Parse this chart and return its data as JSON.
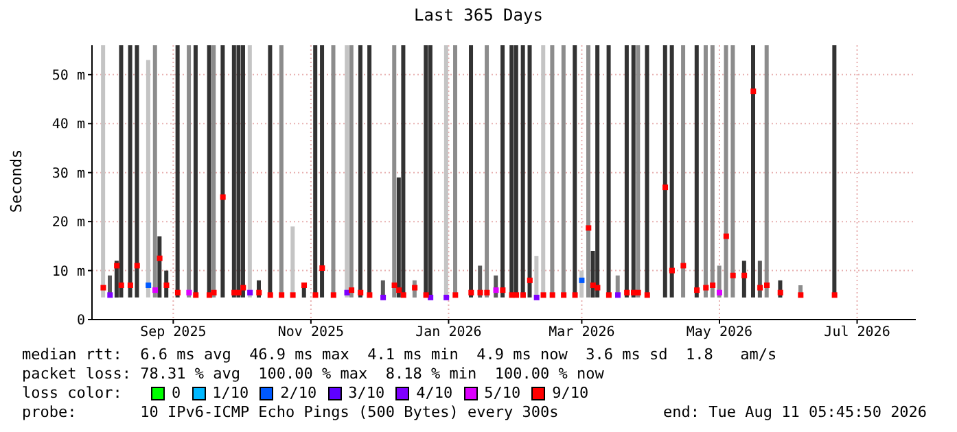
{
  "chart_data": {
    "type": "bar",
    "title": "Last 365 Days",
    "ylabel": "Seconds",
    "x": [
      "2025-08-16",
      "2025-08-19",
      "2025-08-22",
      "2025-08-24",
      "2025-08-28",
      "2025-08-31",
      "2025-09-05",
      "2025-09-08",
      "2025-09-10",
      "2025-09-13",
      "2025-09-18",
      "2025-09-23",
      "2025-09-26",
      "2025-10-02",
      "2025-10-04",
      "2025-10-08",
      "2025-10-13",
      "2025-10-15",
      "2025-10-17",
      "2025-10-20",
      "2025-10-24",
      "2025-10-29",
      "2025-11-03",
      "2025-11-08",
      "2025-11-13",
      "2025-11-18",
      "2025-11-21",
      "2025-11-26",
      "2025-12-02",
      "2025-12-04",
      "2025-12-08",
      "2025-12-12",
      "2025-12-18",
      "2025-12-23",
      "2025-12-25",
      "2025-12-27",
      "2026-01-01",
      "2026-01-06",
      "2026-01-08",
      "2026-01-15",
      "2026-01-19",
      "2026-01-26",
      "2026-01-30",
      "2026-02-02",
      "2026-02-06",
      "2026-02-09",
      "2026-02-13",
      "2026-02-15",
      "2026-02-18",
      "2026-02-21",
      "2026-02-24",
      "2026-02-27",
      "2026-03-03",
      "2026-03-08",
      "2026-03-13",
      "2026-03-16",
      "2026-03-19",
      "2026-03-21",
      "2026-03-23",
      "2026-03-28",
      "2026-04-01",
      "2026-04-05",
      "2026-04-08",
      "2026-04-10",
      "2026-04-14",
      "2026-04-22",
      "2026-04-25",
      "2026-04-30",
      "2026-05-06",
      "2026-05-10",
      "2026-05-13",
      "2026-05-16",
      "2026-05-19",
      "2026-05-22",
      "2026-05-27",
      "2026-05-31",
      "2026-06-03",
      "2026-06-06",
      "2026-06-12",
      "2026-06-21",
      "2026-07-06"
    ],
    "series": [
      {
        "base": [
          4.5,
          4.5,
          4.5,
          4.5,
          4.5,
          4.5,
          4.5,
          4.5,
          4.5,
          4.5,
          4.5,
          4.5,
          4.5,
          4.5,
          4.5,
          4.5,
          4.5,
          4.5,
          4.5,
          4.5,
          4.5,
          4.5,
          4.5,
          4.5,
          4.5,
          4.5,
          4.5,
          4.5,
          4.5,
          4.5,
          4.5,
          4.5,
          4.5,
          4.5,
          4.5,
          4.5,
          4.5,
          4.5,
          4.5,
          4.5,
          4.5,
          4.5,
          4.5,
          4.5,
          4.5,
          4.5,
          4.5,
          4.5,
          4.5,
          4.5,
          4.5,
          4.5,
          4.5,
          4.5,
          4.5,
          4.5,
          4.5,
          4.5,
          4.5,
          4.5,
          4.5,
          4.5,
          4.5,
          4.5,
          4.5,
          4.5,
          4.5,
          4.5,
          4.5,
          4.5,
          4.5,
          4.5,
          4.5,
          4.5,
          4.5,
          4.5,
          4.5,
          4.5,
          4.5,
          4.5,
          4.5
        ],
        "values": [
          51.5,
          4.5,
          7.5,
          51.5,
          51.5,
          51.5,
          48.5,
          51.5,
          12.5,
          5.5,
          51.5,
          51.5,
          51.5,
          51.5,
          51.5,
          51.5,
          51.5,
          51.5,
          51.5,
          51.5,
          3.5,
          51.5,
          51.5,
          14.5,
          2.5,
          51.5,
          51.5,
          51.5,
          51.5,
          51.5,
          51.5,
          51.5,
          3.5,
          51.5,
          24.5,
          51.5,
          3.5,
          51.5,
          51.5,
          51.5,
          51.5,
          51.5,
          6.5,
          51.5,
          4.5,
          51.5,
          51.5,
          51.5,
          51.5,
          51.5,
          8.5,
          51.5,
          51.5,
          51.5,
          51.5,
          5.5,
          51.5,
          9.5,
          51.5,
          51.5,
          4.5,
          51.5,
          51.5,
          51.5,
          51.5,
          51.5,
          51.5,
          51.5,
          51.5,
          51.5,
          51.5,
          6.5,
          51.5,
          51.5,
          7.5,
          51.5,
          7.5,
          51.5,
          3.5,
          2.5,
          51.5
        ],
        "colors": [
          "#c4c4c4",
          "#5a5a5a",
          "#333333",
          "#333333",
          "#333333",
          "#333333",
          "#c4c4c4",
          "#8c8c8c",
          "#333333",
          "#333333",
          "#333333",
          "#8c8c8c",
          "#333333",
          "#333333",
          "#8c8c8c",
          "#333333",
          "#333333",
          "#333333",
          "#333333",
          "#c4c4c4",
          "#333333",
          "#333333",
          "#8c8c8c",
          "#c4c4c4",
          "#333333",
          "#333333",
          "#333333",
          "#8c8c8c",
          "#c4c4c4",
          "#8c8c8c",
          "#333333",
          "#333333",
          "#5a5a5a",
          "#8c8c8c",
          "#333333",
          "#333333",
          "#8c8c8c",
          "#333333",
          "#333333",
          "#c4c4c4",
          "#8c8c8c",
          "#333333",
          "#5a5a5a",
          "#8c8c8c",
          "#5a5a5a",
          "#333333",
          "#333333",
          "#333333",
          "#333333",
          "#333333",
          "#c4c4c4",
          "#c4c4c4",
          "#8c8c8c",
          "#8c8c8c",
          "#333333",
          "#c4c4c4",
          "#8c8c8c",
          "#333333",
          "#333333",
          "#333333",
          "#8c8c8c",
          "#333333",
          "#333333",
          "#8c8c8c",
          "#333333",
          "#333333",
          "#333333",
          "#8c8c8c",
          "#333333",
          "#8c8c8c",
          "#8c8c8c",
          "#8c8c8c",
          "#8c8c8c",
          "#8c8c8c",
          "#333333",
          "#333333",
          "#5a5a5a",
          "#8c8c8c",
          "#333333",
          "#8c8c8c",
          "#333333"
        ]
      },
      {
        "type": "scatter",
        "name": "0",
        "color": "#00ff00",
        "values": [
          null,
          null,
          null,
          null,
          null,
          null,
          null,
          null,
          null,
          null,
          null,
          null,
          null,
          null,
          null,
          null,
          null,
          null,
          null,
          null,
          null,
          null,
          null,
          null,
          null,
          null,
          null,
          null,
          null,
          null,
          null,
          null,
          null,
          null,
          null,
          null,
          null,
          null,
          null,
          null,
          null,
          null,
          null,
          null,
          null,
          null,
          null,
          null,
          null,
          null,
          null,
          null,
          null,
          null,
          null,
          null,
          null,
          null,
          null,
          null,
          null,
          null,
          null,
          null,
          null,
          null,
          null,
          null,
          null,
          null,
          null,
          null,
          null,
          null,
          null,
          null,
          null,
          null,
          null,
          null,
          null
        ]
      },
      {
        "type": "scatter",
        "name": "1/10",
        "color": "#00b8ff",
        "values": [
          null,
          null,
          null,
          null,
          null,
          null,
          null,
          null,
          null,
          null,
          null,
          null,
          null,
          null,
          null,
          null,
          null,
          null,
          null,
          null,
          null,
          null,
          null,
          null,
          null,
          null,
          null,
          null,
          null,
          null,
          null,
          null,
          null,
          null,
          null,
          null,
          null,
          null,
          null,
          null,
          null,
          null,
          null,
          null,
          null,
          null,
          null,
          null,
          null,
          null,
          null,
          null,
          null,
          null,
          null,
          null,
          null,
          null,
          null,
          null,
          null,
          null,
          null,
          null,
          null,
          null,
          null,
          null,
          null,
          null,
          null,
          null,
          null,
          null,
          null,
          null,
          null,
          null,
          null,
          null,
          null
        ]
      },
      {
        "type": "scatter",
        "name": "2/10",
        "color": "#0059ff",
        "x": [
          "2025-09-05",
          "2026-03-16"
        ],
        "values": [
          7,
          8
        ]
      },
      {
        "type": "scatter",
        "name": "3/10",
        "color": "#5e00ff",
        "values": [
          null,
          null,
          null,
          null,
          null,
          null,
          null,
          null,
          null,
          null,
          null,
          null,
          null,
          null,
          null,
          null,
          null,
          null,
          null,
          null,
          null,
          null,
          null,
          null,
          null,
          null,
          null,
          null,
          null,
          null,
          null,
          null,
          null,
          null,
          null,
          null,
          null,
          null,
          null,
          null,
          null,
          null,
          null,
          null,
          null,
          null,
          null,
          null,
          null,
          null,
          null,
          null,
          null,
          null,
          null,
          null,
          null,
          null,
          null,
          null,
          null,
          null,
          null,
          null,
          null,
          null,
          null,
          null,
          null,
          null,
          null,
          null,
          null,
          null,
          null,
          null,
          null,
          null,
          null,
          null,
          null
        ]
      },
      {
        "type": "scatter",
        "name": "4/10",
        "color": "#7e00ff",
        "x": [
          "2025-08-19",
          "2025-10-20",
          "2025-12-02",
          "2025-12-18",
          "2026-01-08",
          "2026-01-15",
          "2026-02-24",
          "2026-04-01"
        ],
        "values": [
          5,
          5.5,
          5.5,
          4.5,
          4.5,
          4.5,
          4.5,
          5
        ]
      },
      {
        "type": "scatter",
        "name": "5/10",
        "color": "#dd00ff",
        "x": [
          "2025-09-08",
          "2025-09-23",
          "2026-02-06",
          "2026-05-16"
        ],
        "values": [
          6,
          5.5,
          6,
          5.5
        ]
      },
      {
        "type": "scatter",
        "name": "9/10",
        "color": "#ff0000",
        "x": [
          "2025-08-16",
          "2025-08-22",
          "2025-08-24",
          "2025-08-28",
          "2025-08-31",
          "2025-09-10",
          "2025-09-13",
          "2025-09-18",
          "2025-09-26",
          "2025-10-02",
          "2025-10-04",
          "2025-10-08",
          "2025-10-13",
          "2025-10-15",
          "2025-10-17",
          "2025-10-24",
          "2025-10-29",
          "2025-11-03",
          "2025-11-08",
          "2025-11-13",
          "2025-11-18",
          "2025-11-21",
          "2025-11-26",
          "2025-12-04",
          "2025-12-08",
          "2025-12-12",
          "2025-12-23",
          "2025-12-25",
          "2025-12-27",
          "2026-01-01",
          "2026-01-06",
          "2026-01-19",
          "2026-01-26",
          "2026-01-30",
          "2026-02-02",
          "2026-02-09",
          "2026-02-13",
          "2026-02-15",
          "2026-02-18",
          "2026-02-21",
          "2026-02-27",
          "2026-03-03",
          "2026-03-08",
          "2026-03-13",
          "2026-03-19",
          "2026-03-21",
          "2026-03-23",
          "2026-03-28",
          "2026-04-05",
          "2026-04-08",
          "2026-04-10",
          "2026-04-14",
          "2026-04-22",
          "2026-04-25",
          "2026-04-30",
          "2026-05-06",
          "2026-05-10",
          "2026-05-13",
          "2026-05-19",
          "2026-05-22",
          "2026-05-27",
          "2026-05-31",
          "2026-06-03",
          "2026-06-06",
          "2026-06-12",
          "2026-06-21",
          "2026-07-06"
        ],
        "values": [
          6.5,
          11,
          7,
          7,
          11,
          12.5,
          7,
          5.5,
          5,
          5,
          5.5,
          25,
          5.5,
          5.5,
          6.5,
          5.5,
          5,
          5,
          5,
          7,
          5,
          10.5,
          5,
          6,
          5.5,
          5,
          7,
          6,
          5,
          6.5,
          5,
          5,
          5.5,
          5.5,
          5.5,
          6,
          5,
          5,
          5,
          8,
          5,
          5,
          5,
          5,
          18.7,
          7,
          6.5,
          5,
          5.5,
          5.5,
          5.5,
          5,
          27,
          10,
          11,
          6,
          6.5,
          7,
          17,
          9,
          9,
          46.6,
          6.5,
          7,
          5.5,
          5,
          5
        ]
      }
    ],
    "xlim": [
      "2025-08-11",
      "2026-08-11"
    ],
    "xticks": [
      {
        "value": "2025-09-16",
        "label": "Sep 2025"
      },
      {
        "value": "2025-11-16",
        "label": "Nov 2025"
      },
      {
        "value": "2026-01-16",
        "label": "Jan 2026"
      },
      {
        "value": "2026-03-16",
        "label": "Mar 2026"
      },
      {
        "value": "2026-05-16",
        "label": "May 2026"
      },
      {
        "value": "2026-07-16",
        "label": "Jul 2026"
      }
    ],
    "ylim": [
      0,
      56
    ],
    "yticks": [
      0,
      {
        "value": 10,
        "label": "10 m"
      },
      {
        "value": 20,
        "label": "20 m"
      },
      {
        "value": 30,
        "label": "30 m"
      },
      {
        "value": 40,
        "label": "40 m"
      },
      {
        "value": 50,
        "label": "50 m"
      }
    ],
    "grid": true,
    "marker": "square",
    "legend": "bottom",
    "legend_title": "loss color:",
    "annotations": [
      "median rtt:  6.6 ms avg  46.9 ms max  4.1 ms min  4.9 ms now  3.6 ms sd  1.8   am/s",
      "packet loss: 78.31 % avg  100.00 % max  8.18 % min  100.00 % now",
      "probe:       10 IPv6-ICMP Echo Pings (500 Bytes) every 300s",
      "end: Tue Aug 11 05:45:50 2026"
    ]
  }
}
